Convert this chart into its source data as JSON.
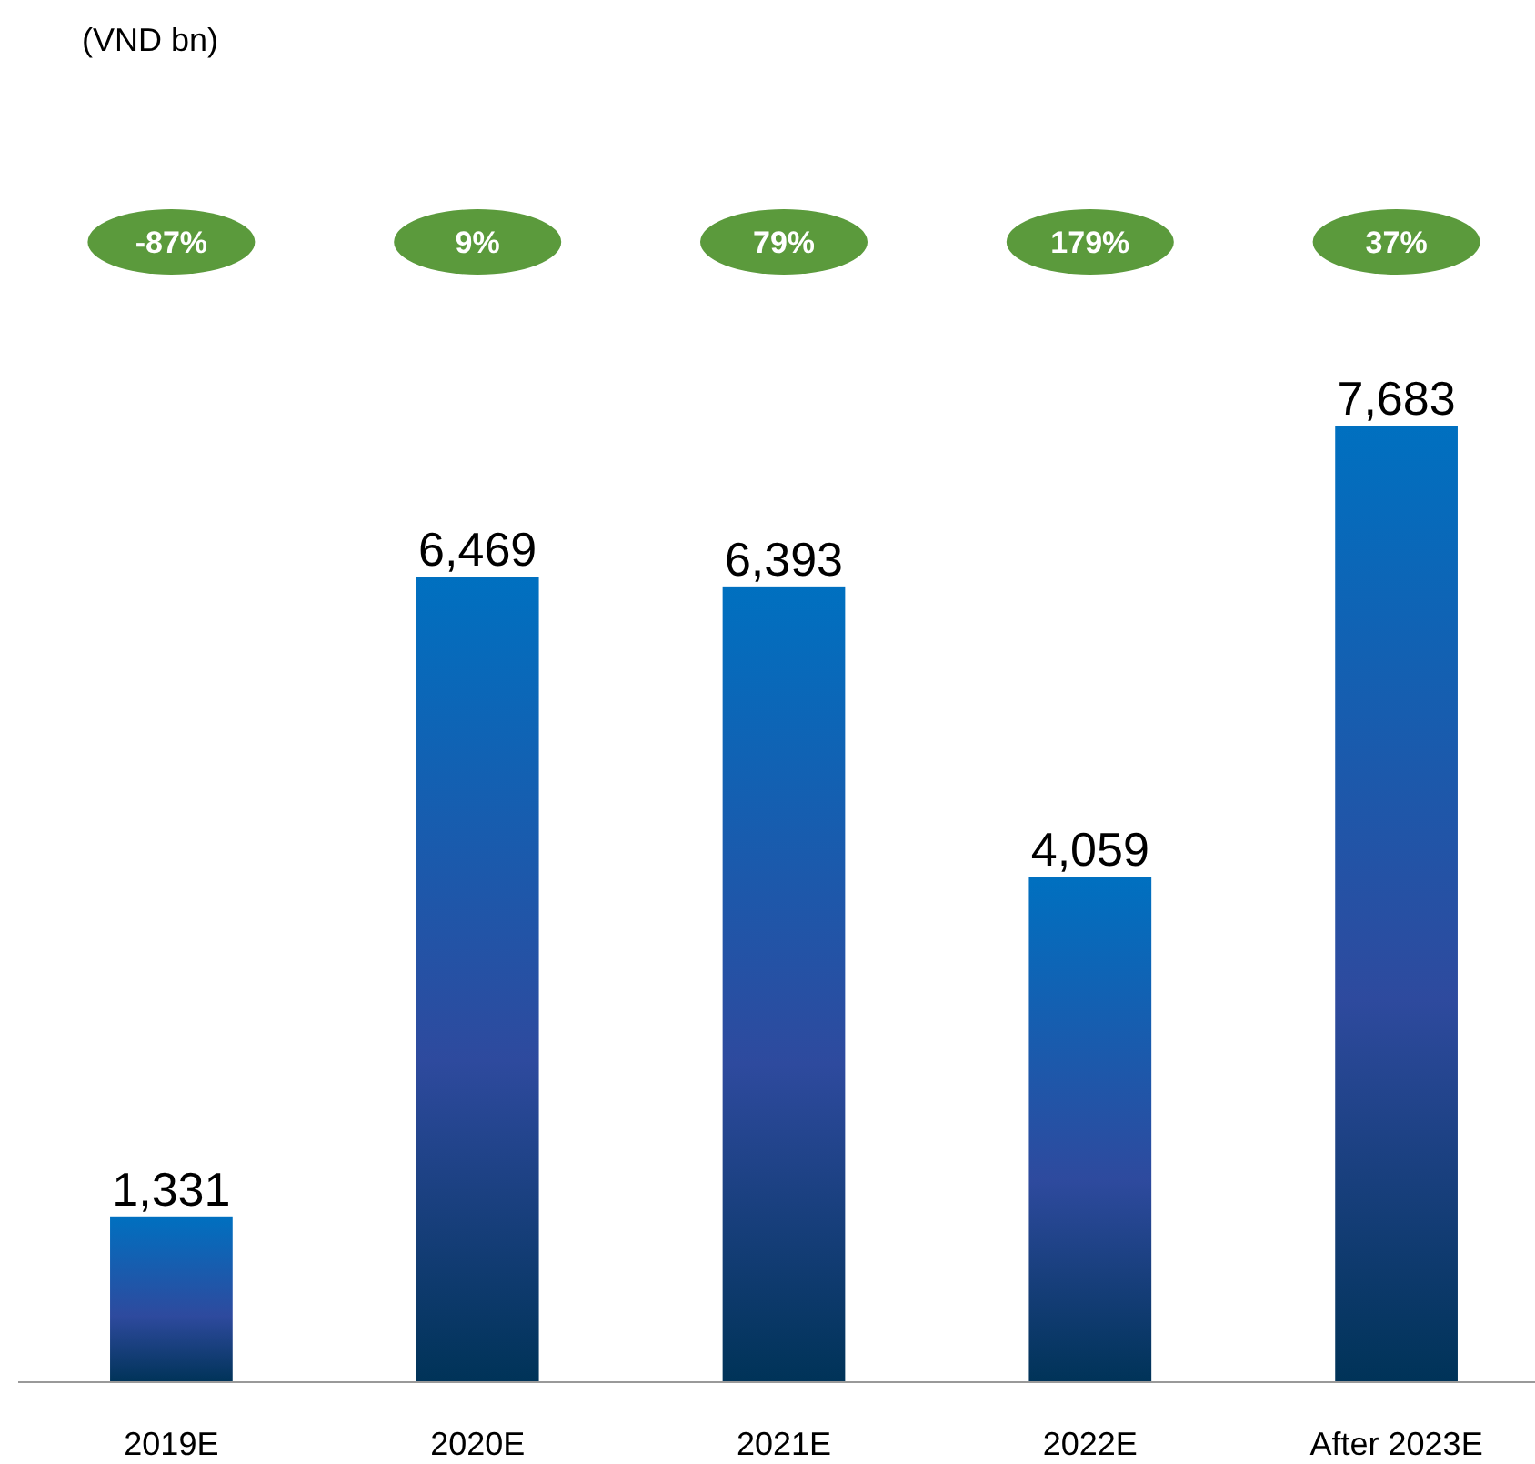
{
  "chart_data": {
    "type": "bar",
    "categories": [
      "2019E",
      "2020E",
      "2021E",
      "2022E",
      "After 2023E"
    ],
    "values": [
      1331,
      6469,
      6393,
      4059,
      7683
    ],
    "color": "#0070c0",
    "value_labels": [
      "1,331",
      "6,469",
      "6,393",
      "4,059",
      "7,683"
    ],
    "annotations": [
      "(VND bn)",
      "-87%",
      "9%",
      "79%",
      "179%",
      "37%"
    ]
  }
}
